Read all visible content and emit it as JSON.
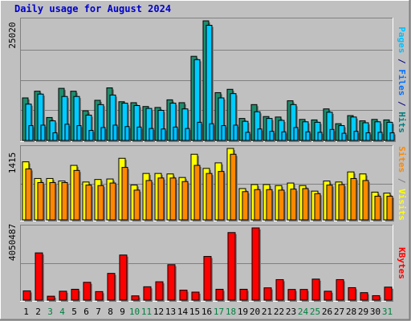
{
  "chart_data": {
    "type": "bar",
    "title": "Daily usage for August 2024",
    "colors": {
      "background": "#c0c0c0",
      "plot": "#c0c0c0",
      "grid": "#808080",
      "hits": "#006060",
      "hits_fill": "#1f8c6c",
      "files": "#00b0e0",
      "files_fill": "#00ccff",
      "pages": "#00c0ff",
      "sites": "#ff8800",
      "visits": "#ffff00",
      "kbytes": "#ff0000",
      "weekend_tick": "#008040",
      "weekday_tick": "#000000"
    },
    "x": [
      "1",
      "2",
      "3",
      "4",
      "5",
      "6",
      "7",
      "8",
      "9",
      "10",
      "11",
      "12",
      "13",
      "14",
      "15",
      "16",
      "17",
      "18",
      "19",
      "20",
      "21",
      "22",
      "23",
      "24",
      "25",
      "26",
      "27",
      "28",
      "29",
      "30",
      "31"
    ],
    "weekend_days": [
      "3",
      "4",
      "10",
      "11",
      "17",
      "18",
      "24",
      "25",
      "31"
    ],
    "panels": [
      {
        "name": "hits-files-pages",
        "ymax_label": "25020",
        "ylim": [
          0,
          25020
        ],
        "axis_label_parts": [
          {
            "text": "Pages",
            "color": "#00c0ff"
          },
          {
            "text": " / ",
            "color": "#000080"
          },
          {
            "text": "Files",
            "color": "#0070ff"
          },
          {
            "text": " / ",
            "color": "#000080"
          },
          {
            "text": "Hits",
            "color": "#008080"
          }
        ],
        "series": [
          {
            "key": "hits",
            "values": [
              8900,
              10300,
              4800,
              10900,
              10300,
              6200,
              8400,
              11000,
              8100,
              7900,
              7100,
              6900,
              8500,
              7900,
              17600,
              25020,
              10000,
              10700,
              4600,
              7500,
              5000,
              4900,
              8300,
              4400,
              4300,
              6600,
              3500,
              5200,
              4100,
              4400,
              4300
            ]
          },
          {
            "key": "files",
            "values": [
              7600,
              9700,
              4100,
              9200,
              9200,
              5300,
              7500,
              9500,
              7800,
              7300,
              6700,
              6300,
              7800,
              6600,
              16900,
              24100,
              8900,
              9800,
              4000,
              6000,
              4600,
              4200,
              7500,
              3900,
              3800,
              5900,
              3100,
              4900,
              3700,
              3900,
              3800
            ]
          },
          {
            "key": "pages",
            "values": [
              3100,
              3200,
              1600,
              3400,
              3100,
              2100,
              2700,
              3200,
              2900,
              2800,
              2500,
              2400,
              2800,
              2500,
              3800,
              3500,
              3100,
              3200,
              1700,
              2400,
              1900,
              1800,
              2700,
              1800,
              1700,
              2300,
              1500,
              1900,
              1600,
              1700,
              1600
            ]
          }
        ]
      },
      {
        "name": "sites-visits",
        "ymax_label": "1415",
        "ylim": [
          0,
          1415
        ],
        "axis_label_parts": [
          {
            "text": "Sites",
            "color": "#ff8800"
          },
          {
            "text": " / ",
            "color": "#808080"
          },
          {
            "text": "Visits",
            "color": "#ffff00"
          }
        ],
        "series": [
          {
            "key": "visits",
            "values": [
              1150,
              820,
              820,
              770,
              1080,
              750,
              800,
              810,
              1220,
              690,
              920,
              920,
              910,
              840,
              1300,
              1020,
              1130,
              1415,
              620,
              700,
              700,
              680,
              730,
              680,
              570,
              770,
              750,
              950,
              910,
              550,
              530
            ]
          },
          {
            "key": "sites",
            "values": [
              1010,
              740,
              740,
              740,
              980,
              690,
              680,
              730,
              1040,
              590,
              780,
              830,
              830,
              760,
              1080,
              920,
              960,
              1300,
              560,
              600,
              600,
              590,
              610,
              620,
              520,
              690,
              700,
              820,
              780,
              470,
              470
            ]
          }
        ]
      },
      {
        "name": "kbytes",
        "ymax_label": "4050487",
        "ylim": [
          0,
          4050487
        ],
        "axis_label_parts": [
          {
            "text": "KBytes",
            "color": "#ff0000"
          }
        ],
        "series": [
          {
            "key": "kbytes",
            "values": [
              520000,
              2650000,
              220000,
              500000,
              610000,
              1000000,
              480000,
              1500000,
              2530000,
              240000,
              750000,
              1030000,
              1990000,
              560000,
              450000,
              2450000,
              610000,
              3790000,
              610000,
              4050487,
              690000,
              1150000,
              600000,
              600000,
              1180000,
              500000,
              1150000,
              700000,
              420000,
              250000,
              730000
            ]
          }
        ]
      }
    ]
  }
}
